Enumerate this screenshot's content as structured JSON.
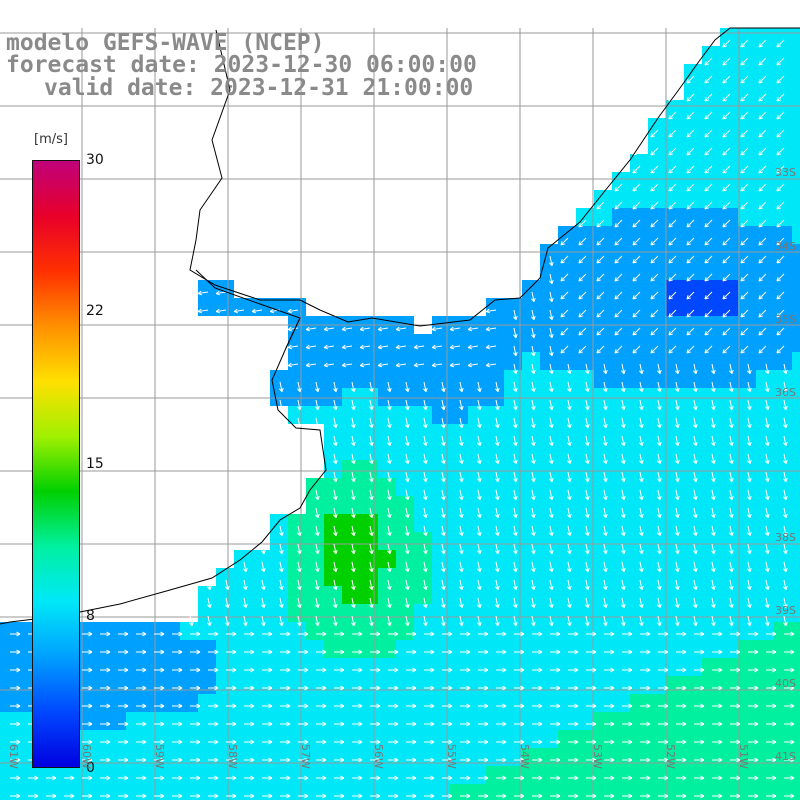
{
  "header": {
    "line1": "modelo GEFS-WAVE (NCEP)",
    "line2": "forecast date: 2023-12-30 06:00:00",
    "line3": "valid date: 2023-12-31 21:00:00"
  },
  "colorbar": {
    "unit": "[m/s]",
    "ticks": [
      "30",
      "22",
      "15",
      "8",
      "0"
    ],
    "colors": [
      "#c0007a",
      "#e8002a",
      "#ff3000",
      "#ff9000",
      "#ffe000",
      "#a0f000",
      "#00d000",
      "#00f0a0",
      "#00e8f8",
      "#00a0ff",
      "#0048ff",
      "#0000e0"
    ]
  },
  "lat_labels": [
    "33S",
    "34S",
    "35S",
    "36S",
    "38S",
    "39S",
    "40S",
    "41S"
  ],
  "lon_labels": [
    "61W",
    "60W",
    "59W",
    "58W",
    "57W",
    "56W",
    "55W",
    "54W",
    "53W",
    "52W",
    "51W"
  ],
  "colors": {
    "land": "#ffffff",
    "coast": "#000000",
    "grid": "#9a9a9a",
    "arrow": "#ffffff"
  }
}
